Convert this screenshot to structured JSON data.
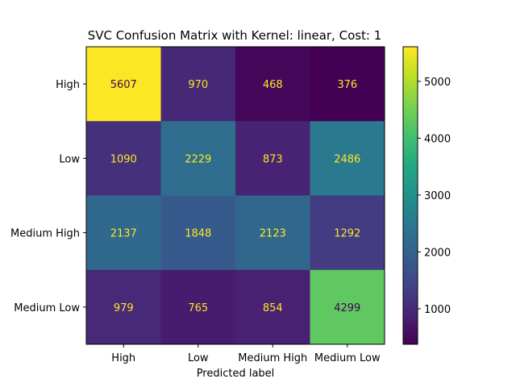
{
  "chart_data": {
    "type": "heatmap",
    "title": "SVC Confusion Matrix with Kernel: linear, Cost: 1",
    "xlabel": "Predicted label",
    "ylabel": "",
    "x_categories": [
      "High",
      "Low",
      "Medium High",
      "Medium Low"
    ],
    "y_categories": [
      "High",
      "Low",
      "Medium High",
      "Medium Low"
    ],
    "values": [
      [
        5607,
        970,
        468,
        376
      ],
      [
        1090,
        2229,
        873,
        2486
      ],
      [
        2137,
        1848,
        2123,
        1292
      ],
      [
        979,
        765,
        854,
        4299
      ]
    ],
    "colormap": "viridis",
    "value_range": [
      376,
      5607
    ],
    "colorbar_ticks": [
      "1000",
      "2000",
      "3000",
      "4000",
      "5000"
    ],
    "colorbar_tick_values": [
      1000,
      2000,
      3000,
      4000,
      5000
    ],
    "annotation_color_low": "#fde725",
    "annotation_color_high": "#440154",
    "grid": false
  }
}
